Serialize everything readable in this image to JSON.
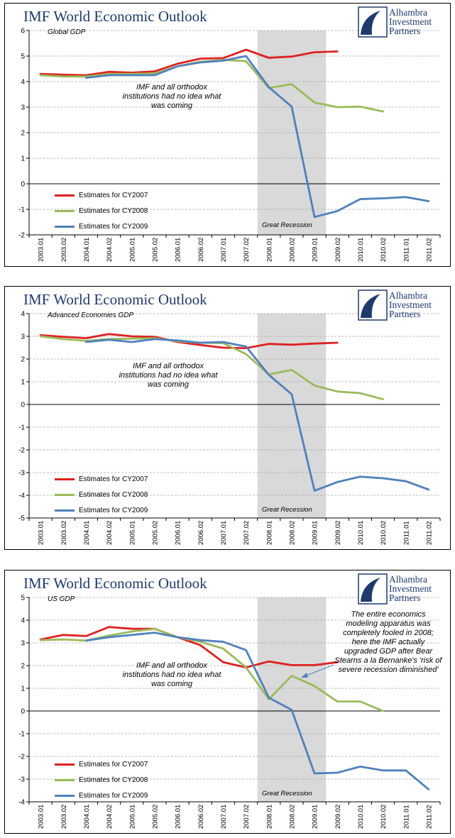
{
  "colors": {
    "cy2007": "#e02020",
    "cy2008": "#9bbb59",
    "cy2009": "#4f81bd",
    "recession": "#d9d9d9",
    "brand": "#1f3a6e"
  },
  "logo": {
    "line1": "Alhambra",
    "line2": "Investment",
    "line3": "Partners",
    "icon": "alhambra-logo-icon"
  },
  "chart_data": [
    {
      "type": "line",
      "title": "IMF World Economic Outlook",
      "subtitle": "Global GDP",
      "categories": [
        "2003.01",
        "2003.02",
        "2004.01",
        "2004.02",
        "2005.01",
        "2005.02",
        "2006.01",
        "2006.02",
        "2007.01",
        "2007.02",
        "2008.01",
        "2008.02",
        "2009.01",
        "2009.02",
        "2010.01",
        "2010.02",
        "2011.01",
        "2011.02"
      ],
      "ylim": [
        -2,
        6
      ],
      "yticks": [
        "6",
        "5",
        "4",
        "3",
        "2",
        "1",
        "0",
        "-1",
        "-2"
      ],
      "recession": {
        "from": 10,
        "to": 12,
        "label": "Great Recession"
      },
      "annotation": [
        "IMF and all orthodox",
        "institutions had no idea what",
        "was coming"
      ],
      "series": [
        {
          "name": "Estimates for CY2007",
          "values": [
            4.3,
            4.27,
            4.25,
            4.38,
            4.35,
            4.4,
            4.7,
            4.9,
            4.92,
            5.25,
            4.93,
            4.98,
            5.15,
            5.18,
            null,
            null,
            null,
            null
          ]
        },
        {
          "name": "Estimates for CY2008",
          "values": [
            4.25,
            4.2,
            4.2,
            4.3,
            4.3,
            4.32,
            4.6,
            4.78,
            4.85,
            4.8,
            3.75,
            3.9,
            3.18,
            3.0,
            3.02,
            2.83,
            null,
            null
          ]
        },
        {
          "name": "Estimates for CY2009",
          "values": [
            null,
            null,
            4.15,
            4.25,
            4.25,
            4.25,
            4.6,
            4.75,
            4.82,
            5.0,
            3.78,
            3.02,
            -1.3,
            -1.07,
            -0.6,
            -0.57,
            -0.52,
            -0.68
          ]
        }
      ]
    },
    {
      "type": "line",
      "title": "IMF World Economic Outlook",
      "subtitle": "Advanced Economies GDP",
      "categories": [
        "2003.01",
        "2003.02",
        "2004.01",
        "2004.02",
        "2005.01",
        "2005.02",
        "2006.01",
        "2006.02",
        "2007.01",
        "2007.02",
        "2008.01",
        "2008.02",
        "2009.01",
        "2009.02",
        "2010.01",
        "2010.02",
        "2011.01",
        "2011.02"
      ],
      "ylim": [
        -5,
        4
      ],
      "yticks": [
        "4",
        "3",
        "2",
        "1",
        "0",
        "-1",
        "-2",
        "-3",
        "-4",
        "-5"
      ],
      "recession": {
        "from": 10,
        "to": 12,
        "label": "Great Recession"
      },
      "annotation": [
        "IMF and all orthodox",
        "institutions had no idea what",
        "was coming"
      ],
      "series": [
        {
          "name": "Estimates for CY2007",
          "values": [
            3.05,
            2.98,
            2.92,
            3.1,
            3.0,
            2.98,
            2.75,
            2.62,
            2.5,
            2.48,
            2.67,
            2.63,
            2.68,
            2.72,
            null,
            null,
            null,
            null
          ]
        },
        {
          "name": "Estimates for CY2008",
          "values": [
            3.0,
            2.88,
            2.8,
            2.88,
            2.9,
            2.92,
            2.78,
            2.72,
            2.7,
            2.22,
            1.32,
            1.52,
            0.83,
            0.57,
            0.5,
            0.23,
            null,
            null
          ]
        },
        {
          "name": "Estimates for CY2009",
          "values": [
            null,
            null,
            2.75,
            2.85,
            2.75,
            2.88,
            2.82,
            2.72,
            2.75,
            2.55,
            1.3,
            0.45,
            -3.8,
            -3.42,
            -3.18,
            -3.25,
            -3.38,
            -3.75
          ]
        }
      ]
    },
    {
      "type": "line",
      "title": "IMF World Economic Outlook",
      "subtitle": "US GDP",
      "categories": [
        "2003.01",
        "2003.02",
        "2004.01",
        "2004.02",
        "2005.01",
        "2005.02",
        "2006.01",
        "2006.02",
        "2007.01",
        "2007.02",
        "2008.01",
        "2008.02",
        "2009.01",
        "2009.02",
        "2010.01",
        "2010.02",
        "2011.01",
        "2011.02"
      ],
      "ylim": [
        -4,
        5
      ],
      "yticks": [
        "5",
        "4",
        "3",
        "2",
        "1",
        "0",
        "-1",
        "-2",
        "-3",
        "-4"
      ],
      "recession": {
        "from": 10,
        "to": 12,
        "label": "Great Recession"
      },
      "annotation": [
        "IMF and all orthodox",
        "institutions had no idea what",
        "was coming"
      ],
      "annotation_right": [
        "The entire economics",
        "modeling apparatus was",
        "completely fooled in 2008;",
        "here the IMF actually",
        "upgraded GDP after Bear",
        "Stearns a la Bernanke's 'risk of",
        "severe recession diminished'"
      ],
      "series": [
        {
          "name": "Estimates for CY2007",
          "values": [
            3.15,
            3.35,
            3.3,
            3.7,
            3.62,
            3.62,
            3.25,
            2.9,
            2.15,
            1.92,
            2.18,
            2.02,
            2.02,
            2.15,
            null,
            null,
            null,
            null
          ]
        },
        {
          "name": "Estimates for CY2008",
          "values": [
            3.12,
            3.15,
            3.1,
            3.32,
            3.5,
            3.62,
            3.25,
            3.05,
            2.75,
            1.92,
            0.52,
            1.55,
            1.1,
            0.42,
            0.42,
            0.0,
            null,
            null
          ]
        },
        {
          "name": "Estimates for CY2009",
          "values": [
            null,
            null,
            3.1,
            3.25,
            3.35,
            3.45,
            3.25,
            3.12,
            3.05,
            2.68,
            0.58,
            0.05,
            -2.75,
            -2.72,
            -2.45,
            -2.62,
            -2.62,
            -3.45
          ]
        }
      ]
    }
  ]
}
